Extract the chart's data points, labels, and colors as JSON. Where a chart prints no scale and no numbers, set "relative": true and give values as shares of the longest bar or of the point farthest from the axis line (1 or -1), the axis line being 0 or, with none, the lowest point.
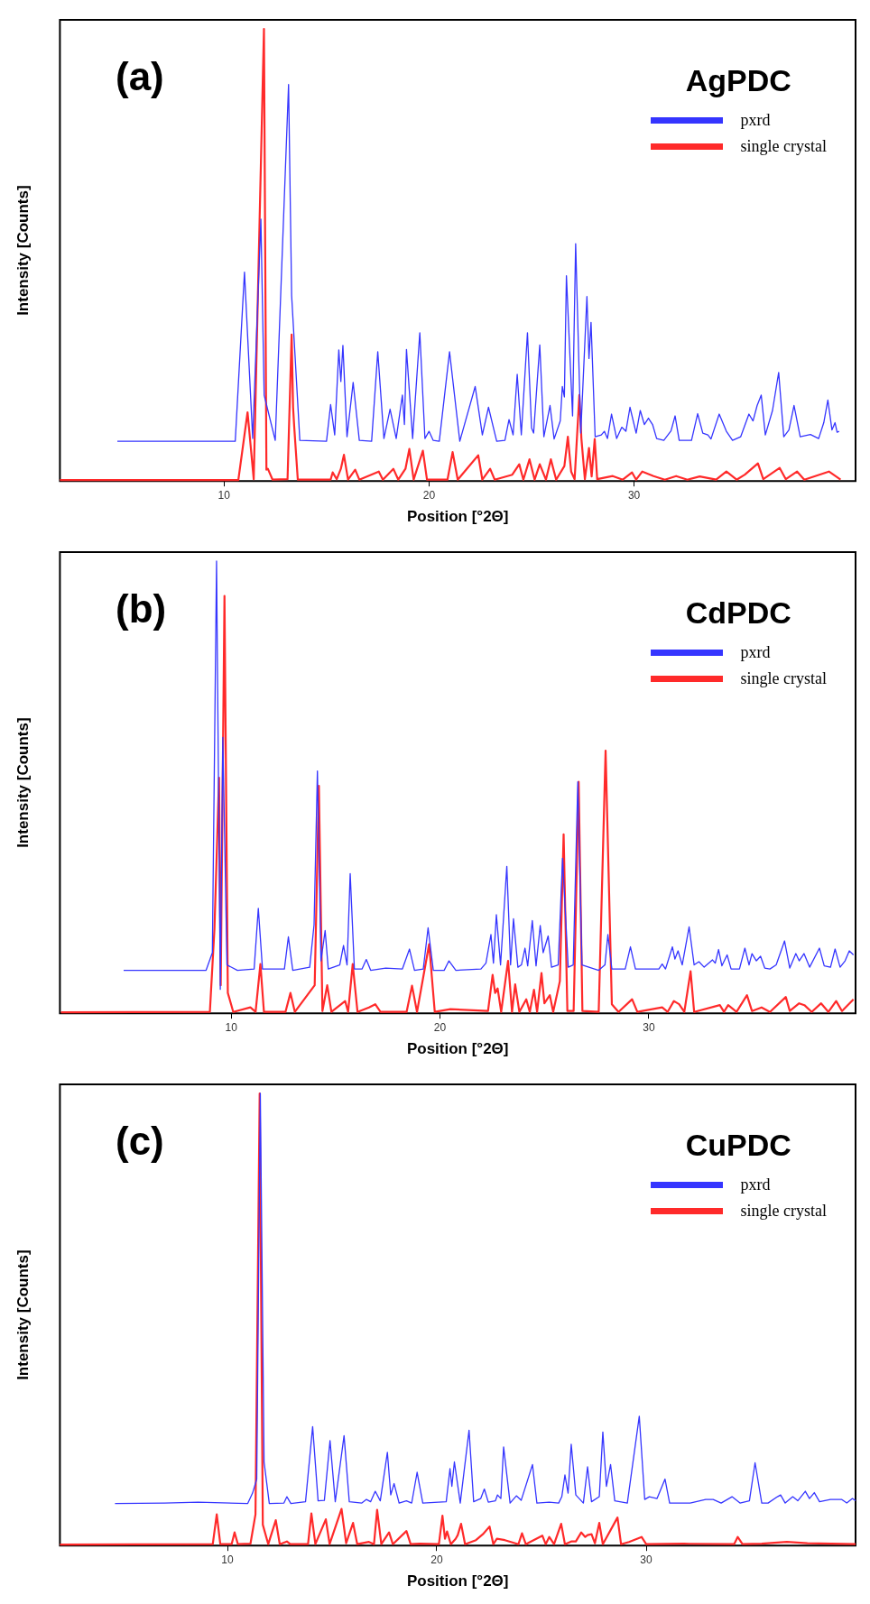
{
  "chart_data": [
    {
      "type": "line",
      "title": "AgPDC",
      "xlabel": "Position [°2Θ]",
      "ylabel": "Intensity [Counts]",
      "annotations": [
        "(a)"
      ],
      "relative": true,
      "xlim": [
        2,
        40.8
      ],
      "xticks": [
        10,
        20,
        30
      ],
      "grid": false,
      "legend": "top right",
      "marker": "none",
      "series": [
        {
          "name": "pxrd",
          "color": "#3535ff",
          "x": [
            4.8,
            10.55,
            11.0,
            11.4,
            11.8,
            11.96,
            12.5,
            13.15,
            13.3,
            13.7,
            15.0,
            15.2,
            15.4,
            15.6,
            15.7,
            15.8,
            16.0,
            16.3,
            16.6,
            17.2,
            17.5,
            17.8,
            18.1,
            18.4,
            18.7,
            18.8,
            18.9,
            19.2,
            19.55,
            19.8,
            20.0,
            20.2,
            20.5,
            21.0,
            21.5,
            22.25,
            22.6,
            22.9,
            23.3,
            23.7,
            23.9,
            24.1,
            24.3,
            24.5,
            24.8,
            25.0,
            25.1,
            25.4,
            25.6,
            25.9,
            26.1,
            26.4,
            26.5,
            26.6,
            26.7,
            27.0,
            27.15,
            27.4,
            27.7,
            27.8,
            27.9,
            28.1,
            28.4,
            28.55,
            28.7,
            28.9,
            29.15,
            29.4,
            29.6,
            29.8,
            30.1,
            30.3,
            30.5,
            30.7,
            30.9,
            31.1,
            31.45,
            31.8,
            32.0,
            32.2,
            32.8,
            33.1,
            33.35,
            33.6,
            33.75,
            34.15,
            34.5,
            34.8,
            35.2,
            35.6,
            35.8,
            36.0,
            36.2,
            36.4,
            36.75,
            37.05,
            37.3,
            37.55,
            37.8,
            38.1,
            38.6,
            39.0,
            39.25,
            39.45,
            39.65,
            39.8,
            39.9,
            40.0
          ],
          "values": [
            0.088,
            0.088,
            0.462,
            0.094,
            0.579,
            0.19,
            0.09,
            0.877,
            0.41,
            0.09,
            0.088,
            0.169,
            0.102,
            0.29,
            0.22,
            0.3,
            0.098,
            0.218,
            0.09,
            0.088,
            0.286,
            0.094,
            0.159,
            0.094,
            0.19,
            0.125,
            0.291,
            0.094,
            0.328,
            0.094,
            0.11,
            0.09,
            0.088,
            0.286,
            0.088,
            0.209,
            0.102,
            0.163,
            0.088,
            0.09,
            0.136,
            0.102,
            0.236,
            0.102,
            0.328,
            0.117,
            0.106,
            0.301,
            0.098,
            0.167,
            0.093,
            0.133,
            0.209,
            0.186,
            0.454,
            0.144,
            0.525,
            0.106,
            0.408,
            0.271,
            0.351,
            0.098,
            0.102,
            0.11,
            0.094,
            0.148,
            0.094,
            0.119,
            0.11,
            0.163,
            0.106,
            0.156,
            0.125,
            0.139,
            0.125,
            0.094,
            0.09,
            0.111,
            0.144,
            0.09,
            0.09,
            0.149,
            0.106,
            0.102,
            0.093,
            0.148,
            0.11,
            0.09,
            0.098,
            0.148,
            0.133,
            0.167,
            0.19,
            0.102,
            0.156,
            0.24,
            0.098,
            0.113,
            0.167,
            0.098,
            0.103,
            0.094,
            0.129,
            0.179,
            0.113,
            0.129,
            0.108,
            0.11
          ]
        },
        {
          "name": "single crystal",
          "color": "#ff2a2a",
          "x": [
            2.0,
            10.7,
            11.15,
            11.45,
            11.95,
            12.07,
            12.14,
            12.37,
            13.1,
            13.3,
            13.37,
            13.43,
            13.6,
            15.2,
            15.3,
            15.5,
            15.7,
            15.85,
            16.05,
            16.4,
            16.6,
            17.55,
            17.75,
            18.26,
            18.5,
            18.85,
            19.04,
            19.25,
            19.7,
            19.9,
            20.9,
            21.15,
            21.4,
            22.4,
            22.6,
            22.98,
            23.2,
            24.06,
            24.4,
            24.6,
            24.9,
            25.15,
            25.4,
            25.7,
            25.94,
            26.2,
            26.6,
            26.77,
            26.93,
            27.1,
            27.33,
            27.43,
            27.6,
            27.8,
            27.93,
            28.08,
            28.2,
            28.96,
            29.45,
            29.9,
            30.1,
            30.4,
            30.95,
            31.5,
            32.05,
            32.6,
            33.2,
            34.0,
            34.5,
            35.0,
            35.4,
            36.04,
            36.3,
            37.1,
            37.4,
            37.95,
            38.3,
            39.3,
            39.5,
            40.07
          ],
          "values": [
            0.002,
            0.002,
            0.152,
            0.004,
            1.0,
            0.025,
            0.027,
            0.003,
            0.004,
            0.324,
            0.163,
            0.117,
            0.003,
            0.003,
            0.019,
            0.004,
            0.027,
            0.058,
            0.003,
            0.025,
            0.003,
            0.021,
            0.003,
            0.027,
            0.003,
            0.027,
            0.071,
            0.003,
            0.067,
            0.003,
            0.003,
            0.064,
            0.003,
            0.057,
            0.003,
            0.027,
            0.003,
            0.014,
            0.037,
            0.003,
            0.048,
            0.003,
            0.037,
            0.003,
            0.048,
            0.003,
            0.033,
            0.098,
            0.021,
            0.004,
            0.19,
            0.094,
            0.004,
            0.073,
            0.01,
            0.093,
            0.004,
            0.011,
            0.003,
            0.019,
            0.003,
            0.021,
            0.011,
            0.003,
            0.011,
            0.003,
            0.01,
            0.003,
            0.021,
            0.003,
            0.014,
            0.039,
            0.004,
            0.029,
            0.004,
            0.021,
            0.003,
            0.018,
            0.021,
            0.003
          ]
        }
      ]
    },
    {
      "type": "line",
      "title": "CdPDC",
      "xlabel": "Position [°2Θ]",
      "ylabel": "Intensity [Counts]",
      "annotations": [
        "(b)"
      ],
      "relative": true,
      "xlim": [
        1.8,
        39.9
      ],
      "xticks": [
        10,
        20,
        30
      ],
      "grid": false,
      "legend": "top right",
      "marker": "none",
      "series": [
        {
          "name": "pxrd",
          "color": "#3535ff",
          "x": [
            4.85,
            8.8,
            9.1,
            9.3,
            9.48,
            9.6,
            9.8,
            10.3,
            11.1,
            11.3,
            11.5,
            12.55,
            12.74,
            12.95,
            13.76,
            13.97,
            14.13,
            14.3,
            14.5,
            14.65,
            15.2,
            15.38,
            15.55,
            15.7,
            15.9,
            16.27,
            16.47,
            16.68,
            17.4,
            18.2,
            18.54,
            18.78,
            19.2,
            19.43,
            19.68,
            20.2,
            20.43,
            20.76,
            21.96,
            22.2,
            22.44,
            22.56,
            22.7,
            22.9,
            23.2,
            23.38,
            23.52,
            23.73,
            23.9,
            24.07,
            24.2,
            24.42,
            24.6,
            24.8,
            24.94,
            25.05,
            25.18,
            25.34,
            25.66,
            25.87,
            26.14,
            26.38,
            26.6,
            26.8,
            27.6,
            27.9,
            28.04,
            28.23,
            28.87,
            29.12,
            29.36,
            30.48,
            30.64,
            30.8,
            31.13,
            31.25,
            31.4,
            31.6,
            31.93,
            32.17,
            32.4,
            32.65,
            33.05,
            33.18,
            33.34,
            33.5,
            33.75,
            33.94,
            34.34,
            34.6,
            34.8,
            34.94,
            35.15,
            35.35,
            35.55,
            35.8,
            36.1,
            36.5,
            36.75,
            37.04,
            37.2,
            37.43,
            37.7,
            38.17,
            38.4,
            38.7,
            38.92,
            39.16,
            39.4,
            39.6,
            39.8
          ],
          "values": [
            0.095,
            0.095,
            0.134,
            1.0,
            0.053,
            0.61,
            0.107,
            0.095,
            0.098,
            0.232,
            0.098,
            0.098,
            0.169,
            0.095,
            0.102,
            0.196,
            0.536,
            0.116,
            0.183,
            0.098,
            0.107,
            0.15,
            0.107,
            0.309,
            0.098,
            0.098,
            0.119,
            0.095,
            0.1,
            0.098,
            0.142,
            0.095,
            0.098,
            0.189,
            0.095,
            0.095,
            0.116,
            0.095,
            0.098,
            0.111,
            0.174,
            0.111,
            0.218,
            0.107,
            0.325,
            0.107,
            0.209,
            0.102,
            0.107,
            0.144,
            0.105,
            0.205,
            0.105,
            0.194,
            0.134,
            0.151,
            0.171,
            0.102,
            0.107,
            0.343,
            0.102,
            0.107,
            0.512,
            0.107,
            0.095,
            0.107,
            0.174,
            0.098,
            0.098,
            0.147,
            0.098,
            0.098,
            0.109,
            0.098,
            0.147,
            0.12,
            0.138,
            0.107,
            0.191,
            0.107,
            0.114,
            0.102,
            0.118,
            0.111,
            0.141,
            0.105,
            0.129,
            0.098,
            0.098,
            0.144,
            0.107,
            0.132,
            0.116,
            0.126,
            0.1,
            0.098,
            0.107,
            0.16,
            0.1,
            0.132,
            0.116,
            0.132,
            0.102,
            0.144,
            0.105,
            0.102,
            0.142,
            0.102,
            0.116,
            0.138,
            0.129
          ]
        },
        {
          "name": "single crystal",
          "color": "#ff2a2a",
          "x": [
            1.85,
            8.98,
            9.2,
            9.42,
            9.5,
            9.68,
            9.84,
            10.1,
            10.92,
            11.17,
            11.4,
            11.57,
            12.6,
            12.84,
            13.05,
            14.0,
            14.2,
            14.37,
            14.6,
            14.8,
            15.46,
            15.6,
            15.82,
            16.05,
            16.6,
            16.9,
            17.15,
            18.4,
            18.66,
            18.9,
            19.48,
            19.75,
            20.5,
            22.3,
            22.52,
            22.64,
            22.76,
            22.93,
            23.26,
            23.45,
            23.6,
            23.8,
            24.13,
            24.3,
            24.5,
            24.65,
            24.86,
            25.0,
            25.26,
            25.42,
            25.74,
            25.92,
            26.1,
            26.4,
            26.64,
            26.82,
            27.6,
            27.93,
            28.23,
            28.55,
            29.2,
            29.45,
            30.64,
            30.9,
            31.2,
            31.45,
            31.7,
            32.0,
            32.17,
            33.4,
            33.6,
            33.8,
            34.2,
            34.7,
            34.94,
            35.4,
            35.8,
            36.56,
            36.75,
            37.2,
            37.45,
            37.8,
            38.25,
            38.6,
            38.97,
            39.25,
            39.8
          ],
          "values": [
            0.002,
            0.003,
            0.187,
            0.521,
            0.062,
            0.923,
            0.045,
            0.003,
            0.013,
            0.003,
            0.109,
            0.003,
            0.003,
            0.045,
            0.003,
            0.062,
            0.503,
            0.005,
            0.062,
            0.003,
            0.027,
            0.003,
            0.109,
            0.003,
            0.013,
            0.02,
            0.003,
            0.003,
            0.061,
            0.003,
            0.153,
            0.003,
            0.009,
            0.005,
            0.085,
            0.045,
            0.055,
            0.003,
            0.116,
            0.003,
            0.064,
            0.003,
            0.031,
            0.003,
            0.052,
            0.003,
            0.089,
            0.022,
            0.04,
            0.003,
            0.071,
            0.396,
            0.005,
            0.005,
            0.512,
            0.005,
            0.003,
            0.581,
            0.02,
            0.003,
            0.031,
            0.003,
            0.013,
            0.003,
            0.027,
            0.02,
            0.003,
            0.093,
            0.003,
            0.018,
            0.003,
            0.018,
            0.003,
            0.04,
            0.005,
            0.013,
            0.003,
            0.036,
            0.005,
            0.022,
            0.018,
            0.003,
            0.022,
            0.003,
            0.027,
            0.005,
            0.031
          ]
        }
      ]
    },
    {
      "type": "line",
      "title": "CuPDC",
      "xlabel": "Position [°2Θ]",
      "ylabel": "Intensity [Counts]",
      "annotations": [
        "(c)"
      ],
      "relative": true,
      "xlim": [
        2,
        40
      ],
      "xticks": [
        10,
        20,
        30
      ],
      "grid": false,
      "legend": "top right",
      "marker": "none",
      "series": [
        {
          "name": "pxrd",
          "color": "#3535ff",
          "x": [
            4.63,
            7.0,
            8.6,
            10.97,
            11.2,
            11.4,
            11.57,
            11.75,
            12.0,
            12.7,
            12.84,
            13.03,
            13.73,
            14.07,
            14.33,
            14.63,
            14.9,
            15.15,
            15.57,
            15.82,
            16.42,
            16.64,
            16.84,
            17.06,
            17.3,
            17.64,
            17.8,
            17.96,
            18.2,
            18.55,
            18.8,
            19.06,
            19.33,
            20.45,
            20.63,
            20.72,
            20.84,
            21.12,
            21.54,
            21.76,
            22.1,
            22.27,
            22.46,
            22.8,
            22.9,
            23.06,
            23.19,
            23.5,
            23.8,
            24.03,
            24.57,
            24.78,
            25.37,
            25.82,
            25.97,
            26.12,
            26.27,
            26.42,
            26.64,
            27.0,
            27.2,
            27.39,
            27.76,
            27.93,
            28.1,
            28.3,
            28.5,
            29.1,
            29.67,
            29.93,
            30.15,
            30.52,
            30.9,
            31.12,
            32.1,
            32.84,
            33.2,
            33.58,
            34.1,
            34.48,
            34.93,
            35.2,
            35.52,
            35.82,
            36.27,
            36.42,
            36.64,
            37.0,
            37.24,
            37.6,
            37.8,
            38.03,
            38.28,
            38.8,
            39.33,
            39.58,
            39.85,
            40.0
          ],
          "values": [
            0.093,
            0.094,
            0.096,
            0.093,
            0.116,
            0.147,
            1.0,
            0.185,
            0.093,
            0.094,
            0.108,
            0.093,
            0.097,
            0.263,
            0.099,
            0.1,
            0.232,
            0.097,
            0.243,
            0.097,
            0.094,
            0.102,
            0.097,
            0.12,
            0.099,
            0.206,
            0.112,
            0.137,
            0.094,
            0.099,
            0.094,
            0.162,
            0.094,
            0.097,
            0.17,
            0.131,
            0.185,
            0.094,
            0.255,
            0.097,
            0.104,
            0.125,
            0.096,
            0.099,
            0.112,
            0.104,
            0.218,
            0.094,
            0.11,
            0.1,
            0.179,
            0.094,
            0.096,
            0.094,
            0.108,
            0.156,
            0.116,
            0.224,
            0.112,
            0.094,
            0.174,
            0.097,
            0.108,
            0.251,
            0.131,
            0.179,
            0.099,
            0.094,
            0.286,
            0.102,
            0.108,
            0.104,
            0.147,
            0.094,
            0.094,
            0.102,
            0.102,
            0.094,
            0.108,
            0.094,
            0.099,
            0.183,
            0.094,
            0.094,
            0.108,
            0.112,
            0.094,
            0.108,
            0.099,
            0.12,
            0.104,
            0.117,
            0.097,
            0.102,
            0.102,
            0.094,
            0.104,
            0.099
          ]
        },
        {
          "name": "single crystal",
          "color": "#ff2a2a",
          "x": [
            2.0,
            9.3,
            9.49,
            9.66,
            10.2,
            10.34,
            10.5,
            11.1,
            11.34,
            11.54,
            11.69,
            11.95,
            12.31,
            12.5,
            12.84,
            13.0,
            13.85,
            14.01,
            14.2,
            14.7,
            14.88,
            15.45,
            15.67,
            16.0,
            16.2,
            16.76,
            17.0,
            17.15,
            17.35,
            17.72,
            17.9,
            18.55,
            18.75,
            19.18,
            20.1,
            20.27,
            20.39,
            20.49,
            20.67,
            20.9,
            21.0,
            21.16,
            21.35,
            21.87,
            22.2,
            22.52,
            22.7,
            22.87,
            23.25,
            23.9,
            24.07,
            24.25,
            25.04,
            25.2,
            25.37,
            25.6,
            25.94,
            26.12,
            26.42,
            26.64,
            26.9,
            27.09,
            27.2,
            27.39,
            27.55,
            27.76,
            27.93,
            28.63,
            28.8,
            29.18,
            29.78,
            30.0,
            31.8,
            34.2,
            34.37,
            34.6,
            35.52,
            36.72,
            37.7,
            40.0
          ],
          "values": [
            0.002,
            0.003,
            0.069,
            0.003,
            0.003,
            0.029,
            0.003,
            0.004,
            0.069,
            1.0,
            0.046,
            0.003,
            0.056,
            0.003,
            0.009,
            0.003,
            0.003,
            0.071,
            0.003,
            0.058,
            0.003,
            0.081,
            0.005,
            0.05,
            0.003,
            0.008,
            0.003,
            0.079,
            0.003,
            0.029,
            0.003,
            0.032,
            0.003,
            0.004,
            0.003,
            0.066,
            0.015,
            0.031,
            0.003,
            0.015,
            0.023,
            0.048,
            0.003,
            0.012,
            0.025,
            0.042,
            0.003,
            0.015,
            0.012,
            0.003,
            0.027,
            0.003,
            0.022,
            0.003,
            0.019,
            0.003,
            0.048,
            0.003,
            0.009,
            0.009,
            0.029,
            0.019,
            0.023,
            0.025,
            0.005,
            0.05,
            0.003,
            0.062,
            0.003,
            0.008,
            0.019,
            0.003,
            0.004,
            0.003,
            0.019,
            0.003,
            0.004,
            0.008,
            0.005,
            0.003
          ]
        }
      ]
    }
  ]
}
